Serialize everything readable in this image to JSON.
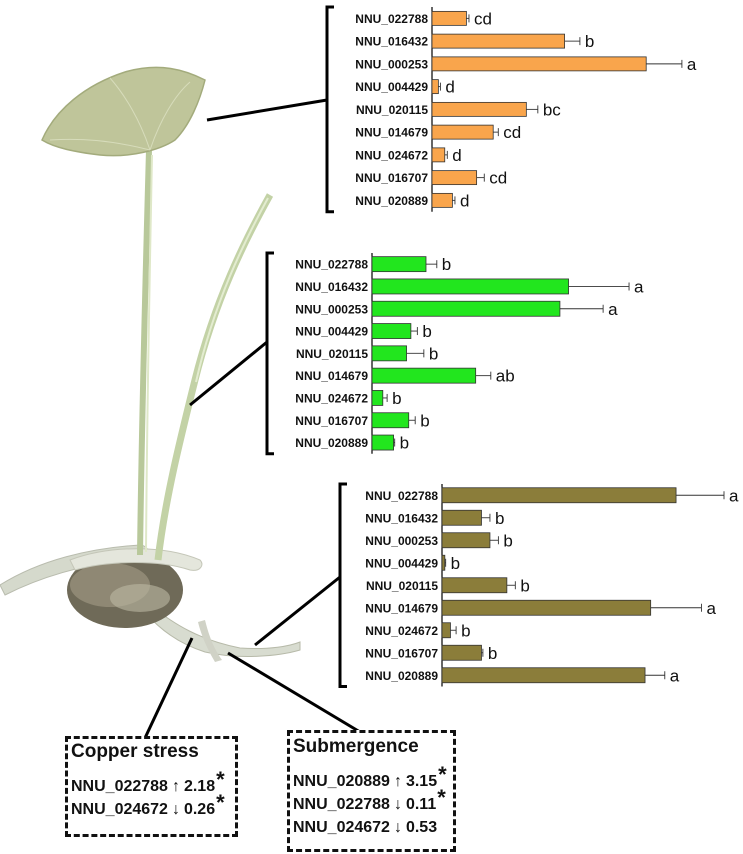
{
  "chart_data": [
    {
      "type": "bar",
      "orientation": "horizontal",
      "tissue": "leaf",
      "color": "#f9a54c",
      "categories": [
        "NNU_022788",
        "NNU_016432",
        "NNU_000253",
        "NNU_004429",
        "NNU_020115",
        "NNU_014679",
        "NNU_024672",
        "NNU_016707",
        "NNU_020889"
      ],
      "values": [
        1.35,
        5.2,
        8.4,
        0.25,
        3.7,
        2.4,
        0.5,
        1.75,
        0.8
      ],
      "errors": [
        0.1,
        0.6,
        1.4,
        0.08,
        0.45,
        0.2,
        0.1,
        0.3,
        0.1
      ],
      "letters": [
        "cd",
        "b",
        "a",
        "d",
        "bc",
        "cd",
        "d",
        "cd",
        "d"
      ]
    },
    {
      "type": "bar",
      "orientation": "horizontal",
      "tissue": "petiole",
      "color": "#22e61e",
      "categories": [
        "NNU_022788",
        "NNU_016432",
        "NNU_000253",
        "NNU_004429",
        "NNU_020115",
        "NNU_014679",
        "NNU_024672",
        "NNU_016707",
        "NNU_020889"
      ],
      "values": [
        2.5,
        9.1,
        8.7,
        1.8,
        1.6,
        4.8,
        0.5,
        1.7,
        1.0
      ],
      "errors": [
        0.5,
        2.8,
        2.0,
        0.3,
        0.8,
        0.7,
        0.2,
        0.3,
        0.05
      ],
      "letters": [
        "b",
        "a",
        "a",
        "b",
        "b",
        "ab",
        "b",
        "b",
        "b"
      ]
    },
    {
      "type": "bar",
      "orientation": "horizontal",
      "tissue": "root",
      "color": "#8b7d3a",
      "categories": [
        "NNU_022788",
        "NNU_016432",
        "NNU_000253",
        "NNU_004429",
        "NNU_020115",
        "NNU_014679",
        "NNU_024672",
        "NNU_016707",
        "NNU_020889"
      ],
      "values": [
        8.3,
        1.4,
        1.7,
        0.1,
        2.3,
        7.4,
        0.3,
        1.4,
        7.2
      ],
      "errors": [
        1.7,
        0.3,
        0.3,
        0.03,
        0.3,
        1.8,
        0.2,
        0.05,
        0.7
      ],
      "letters": [
        "a",
        "b",
        "b",
        "b",
        "b",
        "a",
        "b",
        "b",
        "a"
      ]
    }
  ],
  "annotations": {
    "copper": {
      "title": "Copper stress",
      "rows": [
        {
          "gene": "NNU_022788",
          "arrow": "↑",
          "value": "2.18",
          "star": "*"
        },
        {
          "gene": "NNU_024672",
          "arrow": "↓",
          "value": "0.26",
          "star": "*"
        }
      ]
    },
    "submergence": {
      "title": "Submergence",
      "rows": [
        {
          "gene": "NNU_020889",
          "arrow": "↑",
          "value": "3.15",
          "star": "*"
        },
        {
          "gene": "NNU_022788",
          "arrow": "↓",
          "value": "0.11",
          "star": "*"
        },
        {
          "gene": "NNU_024672",
          "arrow": "↓",
          "value": "0.53",
          "star": ""
        }
      ]
    }
  },
  "colors": {
    "leaf_blade": "#bfc59a",
    "stem": "#c9d6a8",
    "root": "#d8d8cc",
    "root_mass": "#6f6a58"
  }
}
